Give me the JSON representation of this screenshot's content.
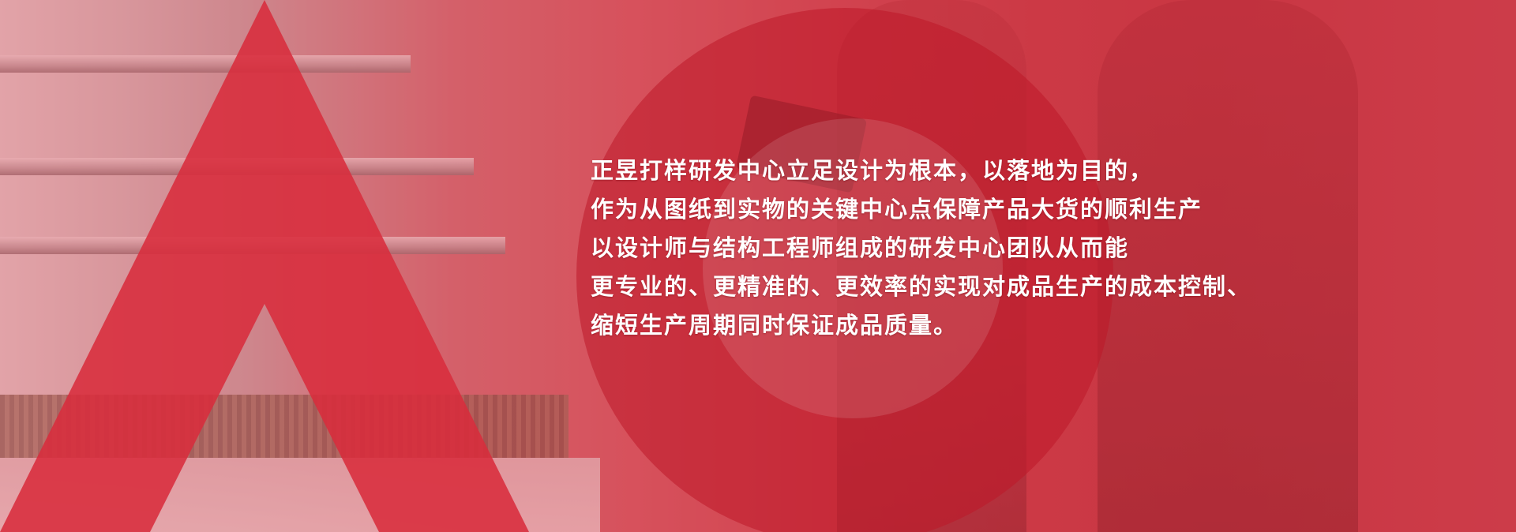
{
  "banner": {
    "accent_color": "#d82c3c",
    "lines": [
      "正昱打样研发中心立足设计为根本，以落地为目的，",
      "作为从图纸到实物的关键中心点保障产品大货的顺利生产",
      "以设计师与结构工程师组成的研发中心团队从而能",
      "更专业的、更精准的、更效率的实现对成品生产的成本控制、",
      "缩短生产周期同时保证成品质量。"
    ]
  }
}
